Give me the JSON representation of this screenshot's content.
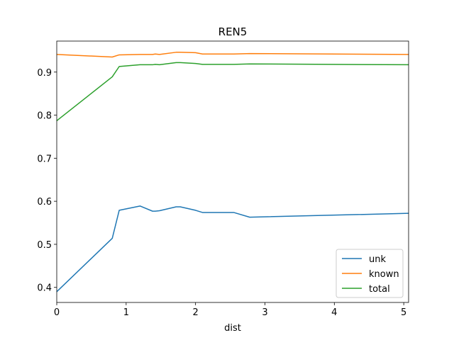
{
  "chart_data": {
    "type": "line",
    "title": "REN5",
    "xlabel": "dist",
    "ylabel": "",
    "xlim": [
      0,
      5.07
    ],
    "ylim": [
      0.365,
      0.972
    ],
    "xticks": [
      0,
      1,
      2,
      3,
      4,
      5
    ],
    "yticks": [
      0.4,
      0.5,
      0.6,
      0.7,
      0.8,
      0.9
    ],
    "legend_position": "lower-right",
    "grid": false,
    "series": [
      {
        "name": "unk",
        "color": "#1f77b4",
        "points": [
          [
            0,
            0.39
          ],
          [
            0.8,
            0.514
          ],
          [
            0.9,
            0.579
          ],
          [
            1.2,
            0.589
          ],
          [
            1.38,
            0.577
          ],
          [
            1.42,
            0.577
          ],
          [
            1.48,
            0.578
          ],
          [
            1.72,
            0.587
          ],
          [
            1.78,
            0.587
          ],
          [
            2.0,
            0.579
          ],
          [
            2.1,
            0.574
          ],
          [
            2.55,
            0.574
          ],
          [
            2.78,
            0.563
          ],
          [
            5.07,
            0.572
          ]
        ]
      },
      {
        "name": "known",
        "color": "#ff7f0e",
        "points": [
          [
            0,
            0.941
          ],
          [
            0.8,
            0.935
          ],
          [
            0.9,
            0.94
          ],
          [
            1.2,
            0.941
          ],
          [
            1.38,
            0.941
          ],
          [
            1.42,
            0.942
          ],
          [
            1.48,
            0.941
          ],
          [
            1.72,
            0.946
          ],
          [
            1.78,
            0.946
          ],
          [
            2.0,
            0.945
          ],
          [
            2.1,
            0.942
          ],
          [
            2.55,
            0.942
          ],
          [
            2.78,
            0.943
          ],
          [
            5.07,
            0.941
          ]
        ]
      },
      {
        "name": "total",
        "color": "#2ca02c",
        "points": [
          [
            0,
            0.787
          ],
          [
            0.8,
            0.889
          ],
          [
            0.9,
            0.913
          ],
          [
            1.2,
            0.917
          ],
          [
            1.38,
            0.917
          ],
          [
            1.42,
            0.918
          ],
          [
            1.48,
            0.917
          ],
          [
            1.72,
            0.922
          ],
          [
            1.78,
            0.922
          ],
          [
            2.0,
            0.92
          ],
          [
            2.1,
            0.918
          ],
          [
            2.55,
            0.918
          ],
          [
            2.78,
            0.919
          ],
          [
            5.07,
            0.917
          ]
        ]
      }
    ]
  }
}
